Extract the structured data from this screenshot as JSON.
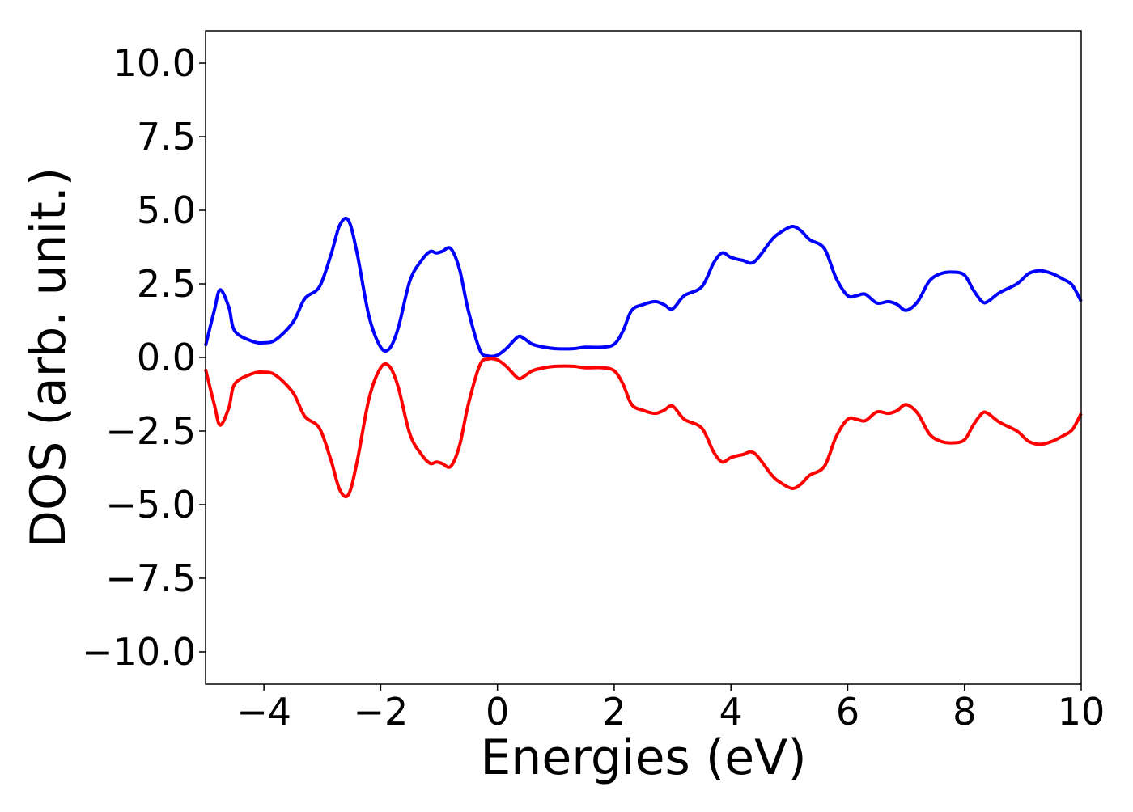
{
  "chart_data": {
    "type": "line",
    "title": "",
    "xlabel": "Energies (eV)",
    "ylabel": "DOS (arb. unit.)",
    "xlim": [
      -5,
      10
    ],
    "ylim": [
      -11.1,
      11.1
    ],
    "xticks": [
      -4,
      -2,
      0,
      2,
      4,
      6,
      8,
      10
    ],
    "xtick_labels": [
      "−4",
      "−2",
      "0",
      "2",
      "4",
      "6",
      "8",
      "10"
    ],
    "yticks": [
      -10,
      -7.5,
      -5,
      -2.5,
      0,
      2.5,
      5,
      7.5,
      10
    ],
    "ytick_labels": [
      "−10.0",
      "−7.5",
      "−5.0",
      "−2.5",
      "0.0",
      "2.5",
      "5.0",
      "7.5",
      "10.0"
    ],
    "grid": false,
    "legend": "none",
    "series": [
      {
        "color": "#0000ff",
        "x": [
          -5.0,
          -4.85,
          -4.75,
          -4.6,
          -4.5,
          -4.2,
          -4.0,
          -3.8,
          -3.5,
          -3.3,
          -3.05,
          -2.85,
          -2.7,
          -2.55,
          -2.4,
          -2.2,
          -2.0,
          -1.85,
          -1.7,
          -1.5,
          -1.3,
          -1.15,
          -1.05,
          -0.95,
          -0.8,
          -0.65,
          -0.5,
          -0.3,
          -0.15,
          0.0,
          0.15,
          0.35,
          0.45,
          0.6,
          0.8,
          1.0,
          1.3,
          1.5,
          1.8,
          2.0,
          2.15,
          2.3,
          2.5,
          2.7,
          2.85,
          3.0,
          3.2,
          3.5,
          3.7,
          3.85,
          4.0,
          4.2,
          4.4,
          4.7,
          4.85,
          5.05,
          5.2,
          5.35,
          5.6,
          5.8,
          6.0,
          6.15,
          6.3,
          6.5,
          6.7,
          6.85,
          7.0,
          7.2,
          7.4,
          7.6,
          7.8,
          8.0,
          8.15,
          8.3,
          8.4,
          8.6,
          8.9,
          9.1,
          9.3,
          9.5,
          9.7,
          9.85,
          10.0
        ],
        "y": [
          0.4,
          1.6,
          2.3,
          1.7,
          0.9,
          0.55,
          0.5,
          0.6,
          1.2,
          2.0,
          2.4,
          3.5,
          4.5,
          4.65,
          3.5,
          1.4,
          0.35,
          0.3,
          1.0,
          2.6,
          3.3,
          3.6,
          3.55,
          3.6,
          3.7,
          3.0,
          1.6,
          0.25,
          0.05,
          0.08,
          0.3,
          0.7,
          0.65,
          0.45,
          0.35,
          0.3,
          0.3,
          0.35,
          0.35,
          0.45,
          0.9,
          1.6,
          1.8,
          1.9,
          1.8,
          1.65,
          2.1,
          2.4,
          3.2,
          3.55,
          3.4,
          3.3,
          3.25,
          4.0,
          4.25,
          4.45,
          4.3,
          4.0,
          3.7,
          2.7,
          2.1,
          2.1,
          2.15,
          1.85,
          1.9,
          1.8,
          1.6,
          1.9,
          2.6,
          2.85,
          2.9,
          2.8,
          2.3,
          1.9,
          1.9,
          2.2,
          2.5,
          2.85,
          2.95,
          2.85,
          2.65,
          2.45,
          1.9
        ]
      },
      {
        "color": "#ff0000",
        "x": [
          -5.0,
          -4.85,
          -4.75,
          -4.6,
          -4.5,
          -4.2,
          -4.0,
          -3.8,
          -3.5,
          -3.3,
          -3.05,
          -2.85,
          -2.7,
          -2.55,
          -2.4,
          -2.2,
          -2.0,
          -1.85,
          -1.7,
          -1.5,
          -1.3,
          -1.15,
          -1.05,
          -0.95,
          -0.8,
          -0.65,
          -0.5,
          -0.3,
          -0.15,
          0.0,
          0.15,
          0.35,
          0.45,
          0.6,
          0.8,
          1.0,
          1.3,
          1.5,
          1.8,
          2.0,
          2.15,
          2.3,
          2.5,
          2.7,
          2.85,
          3.0,
          3.2,
          3.5,
          3.7,
          3.85,
          4.0,
          4.2,
          4.4,
          4.7,
          4.85,
          5.05,
          5.2,
          5.35,
          5.6,
          5.8,
          6.0,
          6.15,
          6.3,
          6.5,
          6.7,
          6.85,
          7.0,
          7.2,
          7.4,
          7.6,
          7.8,
          8.0,
          8.15,
          8.3,
          8.4,
          8.6,
          8.9,
          9.1,
          9.3,
          9.5,
          9.7,
          9.85,
          10.0
        ],
        "y": [
          -0.4,
          -1.6,
          -2.3,
          -1.7,
          -0.9,
          -0.55,
          -0.5,
          -0.6,
          -1.2,
          -2.0,
          -2.4,
          -3.5,
          -4.5,
          -4.65,
          -3.5,
          -1.4,
          -0.35,
          -0.3,
          -1.0,
          -2.6,
          -3.3,
          -3.6,
          -3.55,
          -3.6,
          -3.7,
          -3.0,
          -1.6,
          -0.25,
          -0.05,
          -0.08,
          -0.3,
          -0.7,
          -0.65,
          -0.45,
          -0.35,
          -0.3,
          -0.3,
          -0.35,
          -0.35,
          -0.45,
          -0.9,
          -1.6,
          -1.8,
          -1.9,
          -1.8,
          -1.65,
          -2.1,
          -2.4,
          -3.2,
          -3.55,
          -3.4,
          -3.3,
          -3.25,
          -4.0,
          -4.25,
          -4.45,
          -4.3,
          -4.0,
          -3.7,
          -2.7,
          -2.1,
          -2.1,
          -2.15,
          -1.85,
          -1.9,
          -1.8,
          -1.6,
          -1.9,
          -2.6,
          -2.85,
          -2.9,
          -2.8,
          -2.3,
          -1.9,
          -1.9,
          -2.2,
          -2.5,
          -2.85,
          -2.95,
          -2.85,
          -2.65,
          -2.45,
          -1.9
        ]
      }
    ]
  }
}
